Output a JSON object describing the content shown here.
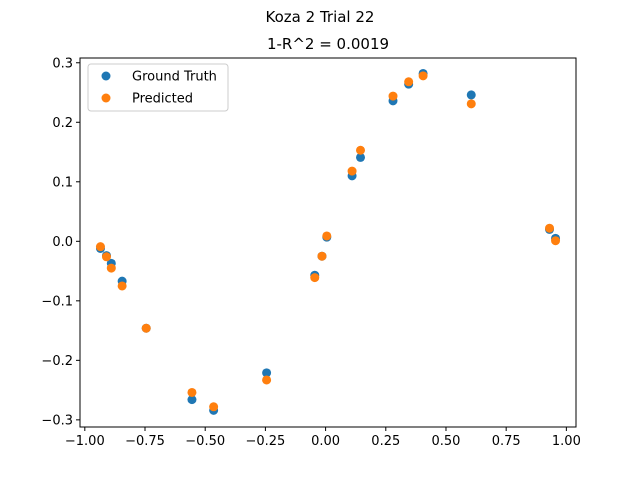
{
  "figure": {
    "suptitle": "Koza 2 Trial 22",
    "title": "1-R^2 = 0.0019"
  },
  "chart_data": {
    "type": "scatter",
    "title": "1-R^2 = 0.0019",
    "suptitle": "Koza 2 Trial 22",
    "xlabel": "",
    "ylabel": "",
    "xlim": [
      -1.02,
      1.04
    ],
    "ylim": [
      -0.312,
      0.308
    ],
    "xticks": [
      -1.0,
      -0.75,
      -0.5,
      -0.25,
      0.0,
      0.25,
      0.5,
      0.75,
      1.0
    ],
    "xtick_labels": [
      "−1.00",
      "−0.75",
      "−0.50",
      "−0.25",
      "0.00",
      "0.25",
      "0.50",
      "0.75",
      "1.00"
    ],
    "yticks": [
      -0.3,
      -0.2,
      -0.1,
      0.0,
      0.1,
      0.2,
      0.3
    ],
    "ytick_labels": [
      "−0.3",
      "−0.2",
      "−0.1",
      "0.0",
      "0.1",
      "0.2",
      "0.3"
    ],
    "grid": false,
    "legend_position": "top-left",
    "series": [
      {
        "name": "Ground Truth",
        "color": "#1f77b4",
        "points": [
          {
            "x": -0.935,
            "y": -0.012
          },
          {
            "x": -0.91,
            "y": -0.024
          },
          {
            "x": -0.89,
            "y": -0.037
          },
          {
            "x": -0.845,
            "y": -0.067
          },
          {
            "x": -0.745,
            "y": -0.146
          },
          {
            "x": -0.555,
            "y": -0.266
          },
          {
            "x": -0.465,
            "y": -0.284
          },
          {
            "x": -0.245,
            "y": -0.221
          },
          {
            "x": -0.045,
            "y": -0.057
          },
          {
            "x": -0.015,
            "y": -0.025
          },
          {
            "x": 0.005,
            "y": 0.007
          },
          {
            "x": 0.11,
            "y": 0.11
          },
          {
            "x": 0.145,
            "y": 0.141
          },
          {
            "x": 0.28,
            "y": 0.236
          },
          {
            "x": 0.345,
            "y": 0.264
          },
          {
            "x": 0.405,
            "y": 0.282
          },
          {
            "x": 0.605,
            "y": 0.246
          },
          {
            "x": 0.93,
            "y": 0.02
          },
          {
            "x": 0.955,
            "y": 0.005
          }
        ]
      },
      {
        "name": "Predicted",
        "color": "#ff7f0e",
        "points": [
          {
            "x": -0.935,
            "y": -0.009
          },
          {
            "x": -0.91,
            "y": -0.026
          },
          {
            "x": -0.89,
            "y": -0.045
          },
          {
            "x": -0.845,
            "y": -0.075
          },
          {
            "x": -0.745,
            "y": -0.146
          },
          {
            "x": -0.555,
            "y": -0.254
          },
          {
            "x": -0.465,
            "y": -0.278
          },
          {
            "x": -0.245,
            "y": -0.233
          },
          {
            "x": -0.045,
            "y": -0.061
          },
          {
            "x": -0.015,
            "y": -0.025
          },
          {
            "x": 0.005,
            "y": 0.009
          },
          {
            "x": 0.11,
            "y": 0.118
          },
          {
            "x": 0.145,
            "y": 0.153
          },
          {
            "x": 0.28,
            "y": 0.244
          },
          {
            "x": 0.345,
            "y": 0.268
          },
          {
            "x": 0.405,
            "y": 0.278
          },
          {
            "x": 0.605,
            "y": 0.231
          },
          {
            "x": 0.93,
            "y": 0.022
          },
          {
            "x": 0.955,
            "y": 0.001
          }
        ]
      }
    ]
  }
}
